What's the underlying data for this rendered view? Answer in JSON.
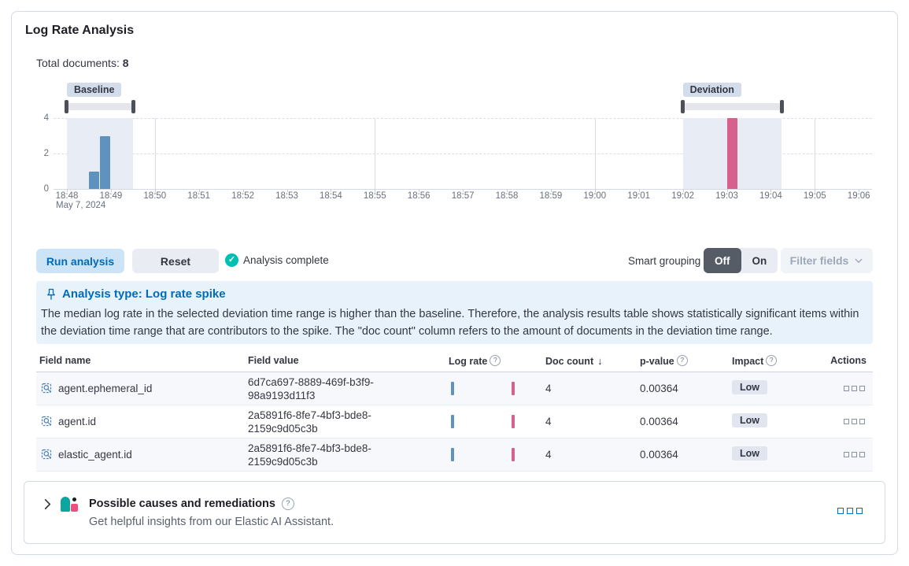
{
  "header": {
    "title": "Log Rate Analysis",
    "total_documents_label": "Total documents:",
    "total_documents_value": "8"
  },
  "chart_data": {
    "type": "bar",
    "title": "Document count histogram with baseline and deviation windows",
    "x_axis_date_label": "May 7, 2024",
    "x_ticks": [
      "18:48",
      "18:49",
      "18:50",
      "18:51",
      "18:52",
      "18:53",
      "18:54",
      "18:55",
      "18:56",
      "18:57",
      "18:58",
      "18:59",
      "19:00",
      "19:01",
      "19:02",
      "19:03",
      "19:04",
      "19:05",
      "19:06"
    ],
    "vertical_gridline_ticks": [
      "18:50",
      "18:55",
      "19:00",
      "19:05"
    ],
    "y_ticks": [
      0,
      2,
      4
    ],
    "ylim": [
      0,
      4
    ],
    "series": [
      {
        "name": "baseline",
        "color": "#6092C0",
        "points": [
          {
            "time": "18:48:30",
            "offset_min": 0.5,
            "doc_count": 1
          },
          {
            "time": "18:48:45",
            "offset_min": 0.75,
            "doc_count": 3
          }
        ]
      },
      {
        "name": "deviation",
        "color": "#D5618C",
        "points": [
          {
            "time": "19:03:00",
            "offset_min": 15.0,
            "doc_count": 4
          }
        ]
      }
    ],
    "brushes": [
      {
        "id": "baseline",
        "label": "Baseline",
        "start_min": 0,
        "end_min": 1.5
      },
      {
        "id": "deviation",
        "label": "Deviation",
        "start_min": 14.0,
        "end_min": 16.25
      }
    ],
    "window_fill": "#E8ECF5"
  },
  "controls": {
    "run_button": "Run analysis",
    "reset_button": "Reset",
    "status_text": "Analysis complete",
    "smart_grouping_label": "Smart grouping",
    "toggle_off": "Off",
    "toggle_on": "On",
    "filter_fields_button": "Filter fields"
  },
  "callout": {
    "title": "Analysis type: Log rate spike",
    "body": "The median log rate in the selected deviation time range is higher than the baseline. Therefore, the analysis results table shows statistically significant items within the deviation time range that are contributors to the spike. The \"doc count\" column refers to the amount of documents in the deviation time range."
  },
  "table": {
    "columns": [
      {
        "label": "Field name"
      },
      {
        "label": "Field value"
      },
      {
        "label": "Log rate",
        "info": true
      },
      {
        "label": "Doc count",
        "sorted": "desc"
      },
      {
        "label": "p-value",
        "info": true
      },
      {
        "label": "Impact",
        "info": true
      },
      {
        "label": "Actions"
      }
    ],
    "rows": [
      {
        "field_name": "agent.ephemeral_id",
        "field_value": "6d7ca697-8889-469f-b3f9-98a9193d11f3",
        "doc_count": "4",
        "p_value": "0.00364",
        "impact": "Low"
      },
      {
        "field_name": "agent.id",
        "field_value": "2a5891f6-8fe7-4bf3-bde8-2159c9d05c3b",
        "doc_count": "4",
        "p_value": "0.00364",
        "impact": "Low"
      },
      {
        "field_name": "elastic_agent.id",
        "field_value": "2a5891f6-8fe7-4bf3-bde8-2159c9d05c3b",
        "doc_count": "4",
        "p_value": "0.00364",
        "impact": "Low"
      }
    ]
  },
  "footer_panel": {
    "title": "Possible causes and remediations",
    "subtitle": "Get helpful insights from our Elastic AI Assistant."
  },
  "icons": {
    "check": "✓",
    "sort_desc": "↓",
    "info": "?"
  },
  "colors": {
    "primary": "#0071C2",
    "success": "#00BFB3",
    "baseline_bar": "#6092C0",
    "deviation_bar": "#D5618C",
    "panel_border": "#D3DAE6",
    "callout_bg": "#E8F2FB"
  }
}
